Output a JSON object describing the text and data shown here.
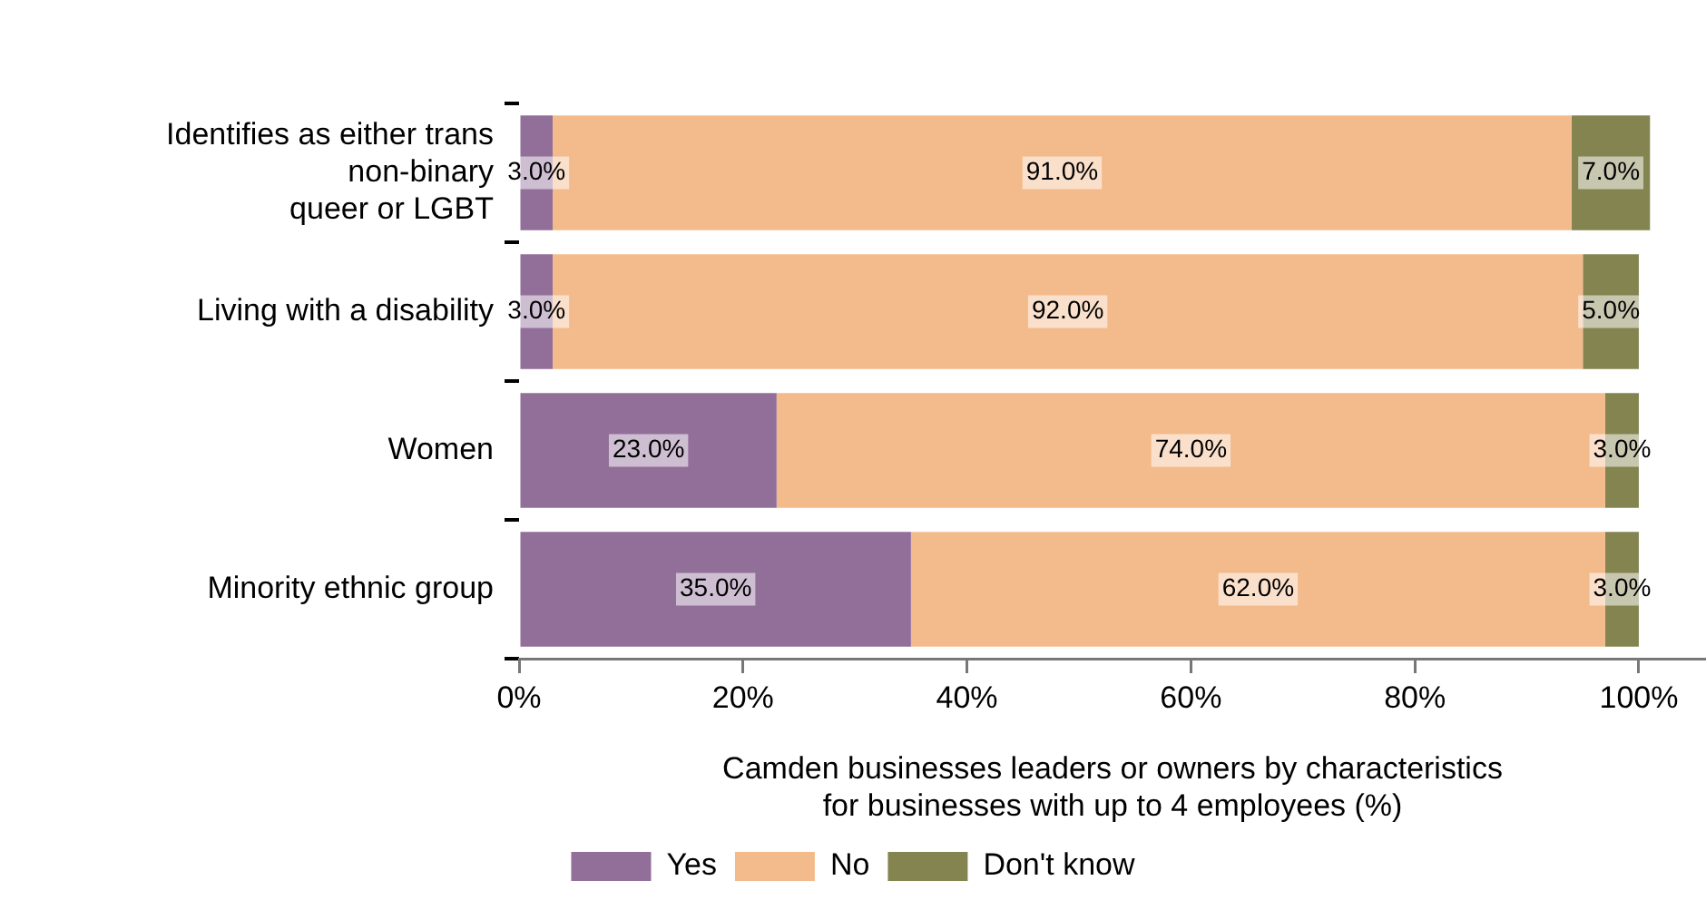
{
  "chart_data": {
    "type": "bar",
    "orientation": "horizontal",
    "stacked": true,
    "categories": [
      "Identifies as either trans\nnon-binary\nqueer or LGBT",
      "Living with a disability",
      "Women",
      "Minority ethnic group"
    ],
    "series": [
      {
        "name": "Yes",
        "color": "#926f99",
        "values": [
          3,
          3,
          23,
          35
        ],
        "value_labels": [
          "3.0%",
          "3.0%",
          "23.0%",
          "35.0%"
        ]
      },
      {
        "name": "No",
        "color": "#f3bb8c",
        "values": [
          91,
          92,
          74,
          62
        ],
        "value_labels": [
          "91.0%",
          "92.0%",
          "74.0%",
          "62.0%"
        ]
      },
      {
        "name": "Don't know",
        "color": "#848450",
        "values": [
          7,
          5,
          3,
          3
        ],
        "value_labels": [
          "7.0%",
          "5.0%",
          "3.0%",
          "3.0%"
        ]
      }
    ],
    "xlabel": "Camden businesses leaders or owners by characteristics\nfor businesses with up to 4 employees (%)",
    "xlim": [
      0,
      106
    ],
    "xticks": [
      {
        "value": 0,
        "label": "0%"
      },
      {
        "value": 20,
        "label": "20%"
      },
      {
        "value": 40,
        "label": "40%"
      },
      {
        "value": 60,
        "label": "60%"
      },
      {
        "value": 80,
        "label": "80%"
      },
      {
        "value": 100,
        "label": "100%"
      }
    ],
    "grid": false,
    "legend": "bottom"
  }
}
